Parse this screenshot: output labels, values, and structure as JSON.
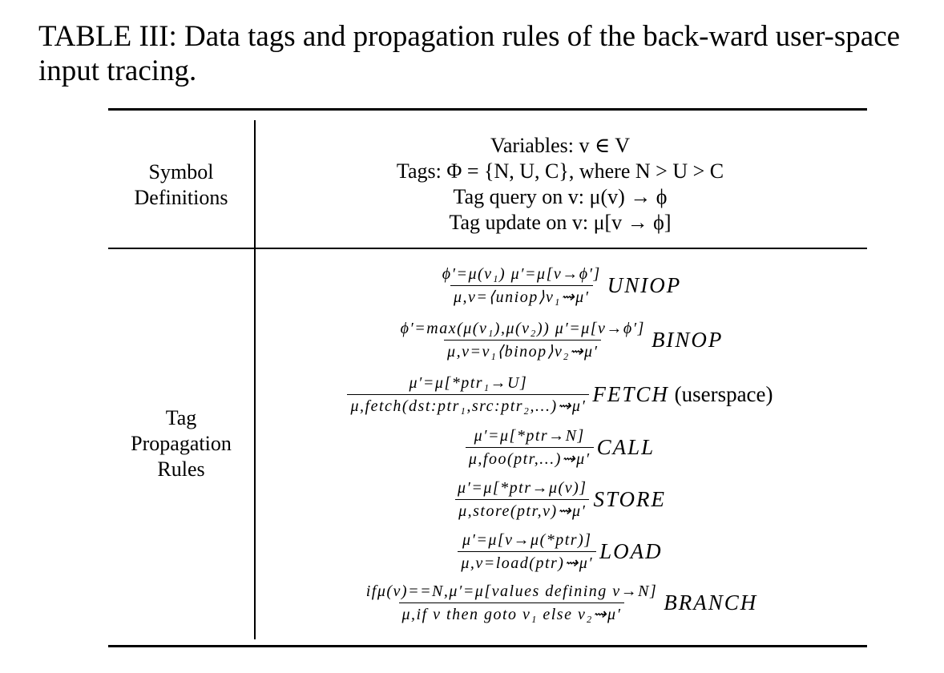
{
  "caption": "TABLE III: Data tags and propagation rules of the back-ward user-space input tracing.",
  "table": {
    "rows": [
      {
        "label_lines": [
          "Symbol",
          "Definitions"
        ],
        "definitions": [
          "Variables: v ∈ V",
          "Tags: Φ = {N, U, C}, where N > U > C",
          "Tag query on v: μ(v) → ϕ",
          "Tag update on v: μ[v → ϕ]"
        ]
      },
      {
        "label_lines": [
          "Tag",
          "Propagation",
          "Rules"
        ],
        "rules": [
          {
            "numerator": "ϕ′=μ(v₁) μ′=μ[v→ϕ′]",
            "denominator": "μ,v=⟨uniop⟩v₁⇝μ′",
            "name": "UNIOP",
            "suffix": ""
          },
          {
            "numerator": "ϕ′=max(μ(v₁),μ(v₂)) μ′=μ[v→ϕ′]",
            "denominator": "μ,v=v₁⟨binop⟩v₂⇝μ′",
            "name": "BINOP",
            "suffix": ""
          },
          {
            "numerator": "μ′=μ[*ptr₁→U]",
            "denominator": "μ,fetch(dst:ptr₁,src:ptr₂,...)⇝μ′",
            "name": "FETCH",
            "suffix": " (userspace)"
          },
          {
            "numerator": "μ′=μ[*ptr→N]",
            "denominator": "μ,foo(ptr,...)⇝μ′",
            "name": "CALL",
            "suffix": ""
          },
          {
            "numerator": "μ′=μ[*ptr→μ(v)]",
            "denominator": "μ,store(ptr,v)⇝μ′",
            "name": "STORE",
            "suffix": ""
          },
          {
            "numerator": "μ′=μ[v→μ(*ptr)]",
            "denominator": "μ,v=load(ptr)⇝μ′",
            "name": "LOAD",
            "suffix": ""
          },
          {
            "numerator": "ifμ(v)==N,μ′=μ[values defining v→N]",
            "denominator": "μ,if v then goto v₁ else v₂⇝μ′",
            "name": "BRANCH",
            "suffix": ""
          }
        ]
      }
    ]
  }
}
